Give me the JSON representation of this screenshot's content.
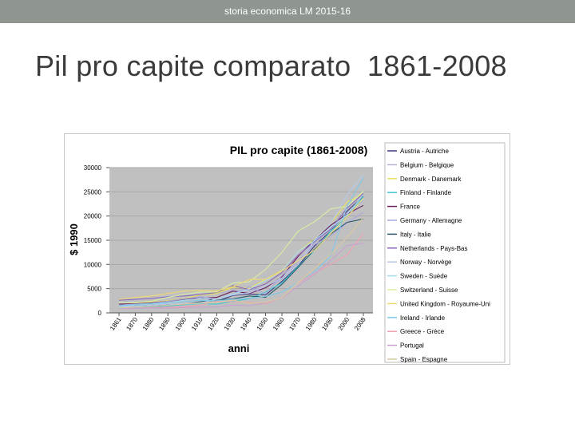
{
  "slide": {
    "header": "storia economica LM   2015-16",
    "title": "Pil pro capite comparato  1861-2008"
  },
  "colors": {
    "header_bar": "#8e968f",
    "plot_background": "#c0c0c0",
    "title_text": "#3b3b3b"
  },
  "chart_data": {
    "type": "line",
    "title": "PIL pro capite (1861-2008)",
    "xlabel": "anni",
    "ylabel": "$ 1990",
    "ylim": [
      0,
      30000
    ],
    "yticks": [
      0,
      5000,
      10000,
      15000,
      20000,
      25000,
      30000
    ],
    "xticks": [
      "1861",
      "1870",
      "1880",
      "1890",
      "1900",
      "1910",
      "1920",
      "1930",
      "1940",
      "1950",
      "1960",
      "1970",
      "1980",
      "1990",
      "2000",
      "2008"
    ],
    "x": [
      1861,
      1870,
      1880,
      1890,
      1900,
      1910,
      1920,
      1930,
      1940,
      1950,
      1960,
      1970,
      1980,
      1990,
      2000,
      2008
    ],
    "grid": true,
    "legend_position": "right",
    "series": [
      {
        "name": "Austria - Autriche",
        "color": "#3a3a7a",
        "values": [
          1500,
          1800,
          2000,
          2400,
          2800,
          3300,
          2400,
          3600,
          3900,
          3700,
          6500,
          9700,
          13800,
          16900,
          21000,
          24100
        ]
      },
      {
        "name": "Belgium - Belgique",
        "color": "#b0b0d8",
        "values": [
          2100,
          2700,
          3000,
          3400,
          3700,
          4200,
          4000,
          4600,
          4400,
          5500,
          6900,
          10600,
          14500,
          17200,
          20700,
          23200
        ]
      },
      {
        "name": "Denmark - Danemark",
        "color": "#e8e060",
        "values": [
          1700,
          2000,
          2200,
          2500,
          3000,
          3700,
          4000,
          5300,
          5100,
          6900,
          8800,
          12700,
          15200,
          18500,
          22900,
          24600
        ]
      },
      {
        "name": "Finland - Finlande",
        "color": "#40c8d0",
        "values": [
          1000,
          1100,
          1200,
          1400,
          1700,
          1900,
          1800,
          2400,
          2900,
          4300,
          6200,
          9600,
          12900,
          16900,
          19800,
          24000
        ]
      },
      {
        "name": "France",
        "color": "#6a1a5a",
        "values": [
          1800,
          1900,
          2100,
          2400,
          2900,
          3000,
          3200,
          4500,
          4000,
          5200,
          7400,
          11700,
          15100,
          18100,
          20400,
          22200
        ]
      },
      {
        "name": "Germany - Allemagne",
        "color": "#a8a8e0",
        "values": [
          1600,
          1800,
          2000,
          2400,
          2900,
          3300,
          2800,
          3900,
          5400,
          3900,
          7700,
          10800,
          14100,
          15900,
          18600,
          20800
        ]
      },
      {
        "name": "Italy - Italie",
        "color": "#2a5a6a",
        "values": [
          1400,
          1500,
          1600,
          1700,
          1800,
          2300,
          2600,
          2900,
          3500,
          3200,
          5900,
          9400,
          13100,
          16300,
          18700,
          19400
        ]
      },
      {
        "name": "Netherlands - Pays-Bas",
        "color": "#8a6ab8",
        "values": [
          2600,
          2800,
          3000,
          3300,
          3500,
          3800,
          4200,
          5600,
          4800,
          6000,
          8300,
          11900,
          14700,
          17300,
          21600,
          24700
        ]
      },
      {
        "name": "Norway - Norvège",
        "color": "#b8c8e8",
        "values": [
          1300,
          1400,
          1600,
          1800,
          1900,
          2100,
          2800,
          3700,
          4100,
          5500,
          7200,
          10000,
          15100,
          18500,
          24400,
          28500
        ]
      },
      {
        "name": "Sweden - Suède",
        "color": "#a8d8f0",
        "values": [
          1300,
          1600,
          1800,
          2000,
          2600,
          3000,
          2800,
          3900,
          4900,
          6700,
          8700,
          12700,
          14900,
          17700,
          20300,
          24400
        ]
      },
      {
        "name": "Switzerland - Suisse",
        "color": "#d8f0a0",
        "values": [
          2200,
          2100,
          2400,
          3200,
          3800,
          4300,
          4300,
          6200,
          6400,
          9000,
          12500,
          16900,
          18800,
          21500,
          22000,
          25100
        ]
      },
      {
        "name": "United Kingdom - Royaume-Uni",
        "color": "#f0d870",
        "values": [
          2800,
          3200,
          3500,
          4000,
          4500,
          4600,
          4500,
          5400,
          6900,
          6900,
          8600,
          10800,
          12900,
          16400,
          19800,
          23700
        ]
      },
      {
        "name": "Ireland - Irlande",
        "color": "#80c8e8",
        "values": [
          1500,
          1700,
          1900,
          2100,
          2300,
          2600,
          2500,
          2800,
          3000,
          3400,
          4300,
          6200,
          8500,
          11800,
          22000,
          27900
        ]
      },
      {
        "name": "Greece - Grèce",
        "color": "#f0a0b0",
        "values": [
          900,
          1000,
          1100,
          1200,
          1300,
          1600,
          2400,
          2300,
          2200,
          1900,
          3100,
          6200,
          8200,
          10000,
          12000,
          16400
        ]
      },
      {
        "name": "Portugal",
        "color": "#c8a0d0",
        "values": [
          900,
          950,
          1000,
          1000,
          1100,
          1200,
          1200,
          1600,
          1500,
          2100,
          3000,
          5500,
          8000,
          10800,
          13900,
          14400
        ]
      },
      {
        "name": "Spain - Espagne",
        "color": "#d8c8a0",
        "values": [
          1000,
          1200,
          1400,
          1600,
          1800,
          2000,
          2200,
          2600,
          2000,
          2200,
          3100,
          6300,
          9200,
          12100,
          15600,
          19700
        ]
      }
    ]
  }
}
